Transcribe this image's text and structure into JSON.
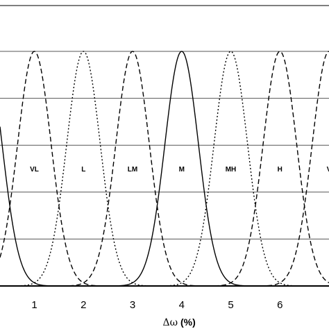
{
  "chart_data": {
    "type": "line",
    "title": "",
    "xlabel_symbol": "Δω",
    "xlabel_unit": "(%)",
    "ylabel": "",
    "xlim": [
      0.3,
      7.0
    ],
    "ylim": [
      0,
      1
    ],
    "x_ticks": [
      "1",
      "2",
      "3",
      "4",
      "5",
      "6"
    ],
    "grid": true,
    "series": [
      {
        "name": "VL",
        "center": 1,
        "half_width": 0.75,
        "style": "dashed"
      },
      {
        "name": "L",
        "center": 2,
        "half_width": 0.75,
        "style": "dotted"
      },
      {
        "name": "LM",
        "center": 3,
        "half_width": 0.75,
        "style": "dashed"
      },
      {
        "name": "M",
        "center": 4,
        "half_width": 0.75,
        "style": "solid"
      },
      {
        "name": "MH",
        "center": 5,
        "half_width": 0.75,
        "style": "dotted"
      },
      {
        "name": "H",
        "center": 6,
        "half_width": 0.75,
        "style": "dashed"
      },
      {
        "name": "V",
        "center": 7,
        "half_width": 0.75,
        "style": "dashed"
      },
      {
        "name": "",
        "center": 0,
        "half_width": 0.75,
        "style": "solid"
      }
    ],
    "labels_at_y": 0.5
  }
}
